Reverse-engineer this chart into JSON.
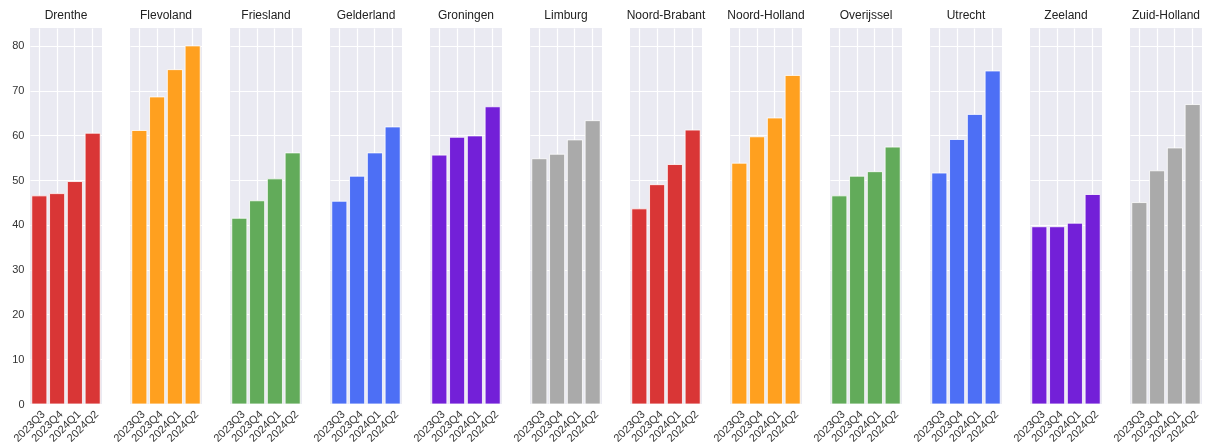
{
  "chart_data": [
    {
      "type": "bar",
      "title": "Drenthe",
      "categories": [
        "2023Q3",
        "2023Q4",
        "2024Q1",
        "2024Q2"
      ],
      "values": [
        46.5,
        47.0,
        49.7,
        60.5
      ],
      "color": "#d93636",
      "ylim": [
        0,
        84
      ],
      "yticks": [
        0,
        10,
        20,
        30,
        40,
        50,
        60,
        70,
        80
      ],
      "grid": true
    },
    {
      "type": "bar",
      "title": "Flevoland",
      "categories": [
        "2023Q3",
        "2023Q4",
        "2024Q1",
        "2024Q2"
      ],
      "values": [
        61.1,
        68.6,
        74.7,
        80.0
      ],
      "color": "#ffa01f",
      "ylim": [
        0,
        84
      ],
      "yticks": [
        0,
        10,
        20,
        30,
        40,
        50,
        60,
        70,
        80
      ],
      "grid": true,
      "tick_labels": "x"
    },
    {
      "type": "bar",
      "title": "Friesland",
      "categories": [
        "2023Q3",
        "2023Q4",
        "2024Q1",
        "2024Q2"
      ],
      "values": [
        41.5,
        45.4,
        50.3,
        56.1
      ],
      "color": "#62ab5a",
      "ylim": [
        0,
        84
      ],
      "yticks": [
        0,
        10,
        20,
        30,
        40,
        50,
        60,
        70,
        80
      ],
      "grid": true,
      "tick_labels": "x"
    },
    {
      "type": "bar",
      "title": "Gelderland",
      "categories": [
        "2023Q3",
        "2023Q4",
        "2024Q1",
        "2024Q2"
      ],
      "values": [
        45.3,
        50.9,
        56.1,
        61.9
      ],
      "color": "#4d6ff5",
      "ylim": [
        0,
        84
      ],
      "yticks": [
        0,
        10,
        20,
        30,
        40,
        50,
        60,
        70,
        80
      ],
      "grid": true,
      "tick_labels": "x"
    },
    {
      "type": "bar",
      "title": "Groningen",
      "categories": [
        "2023Q3",
        "2023Q4",
        "2024Q1",
        "2024Q2"
      ],
      "values": [
        55.6,
        59.6,
        59.9,
        66.4
      ],
      "color": "#7320d8",
      "ylim": [
        0,
        84
      ],
      "yticks": [
        0,
        10,
        20,
        30,
        40,
        50,
        60,
        70,
        80
      ],
      "grid": true,
      "tick_labels": "x"
    },
    {
      "type": "bar",
      "title": "Limburg",
      "categories": [
        "2023Q3",
        "2023Q4",
        "2024Q1",
        "2024Q2"
      ],
      "values": [
        54.8,
        55.8,
        59.0,
        63.3
      ],
      "color": "#aaaaaa",
      "ylim": [
        0,
        84
      ],
      "yticks": [
        0,
        10,
        20,
        30,
        40,
        50,
        60,
        70,
        80
      ],
      "grid": true,
      "tick_labels": "x"
    },
    {
      "type": "bar",
      "title": "Noord-Brabant",
      "categories": [
        "2023Q3",
        "2023Q4",
        "2024Q1",
        "2024Q2"
      ],
      "values": [
        43.6,
        49.0,
        53.5,
        61.2
      ],
      "color": "#d93636",
      "ylim": [
        0,
        84
      ],
      "yticks": [
        0,
        10,
        20,
        30,
        40,
        50,
        60,
        70,
        80
      ],
      "grid": true,
      "tick_labels": "x"
    },
    {
      "type": "bar",
      "title": "Noord-Holland",
      "categories": [
        "2023Q3",
        "2023Q4",
        "2024Q1",
        "2024Q2"
      ],
      "values": [
        53.8,
        59.7,
        63.9,
        73.4
      ],
      "color": "#ffa01f",
      "ylim": [
        0,
        84
      ],
      "yticks": [
        0,
        10,
        20,
        30,
        40,
        50,
        60,
        70,
        80
      ],
      "grid": true,
      "tick_labels": "x"
    },
    {
      "type": "bar",
      "title": "Overijssel",
      "categories": [
        "2023Q3",
        "2023Q4",
        "2024Q1",
        "2024Q2"
      ],
      "values": [
        46.5,
        50.9,
        51.9,
        57.4
      ],
      "color": "#62ab5a",
      "ylim": [
        0,
        84
      ],
      "yticks": [
        0,
        10,
        20,
        30,
        40,
        50,
        60,
        70,
        80
      ],
      "grid": true,
      "tick_labels": "x"
    },
    {
      "type": "bar",
      "title": "Utrecht",
      "categories": [
        "2023Q3",
        "2023Q4",
        "2024Q1",
        "2024Q2"
      ],
      "values": [
        51.6,
        59.1,
        64.7,
        74.4
      ],
      "color": "#4d6ff5",
      "ylim": [
        0,
        84
      ],
      "yticks": [
        0,
        10,
        20,
        30,
        40,
        50,
        60,
        70,
        80
      ],
      "grid": true,
      "tick_labels": "x"
    },
    {
      "type": "bar",
      "title": "Zeeland",
      "categories": [
        "2023Q3",
        "2023Q4",
        "2024Q1",
        "2024Q2"
      ],
      "values": [
        39.6,
        39.6,
        40.4,
        46.8
      ],
      "color": "#7320d8",
      "ylim": [
        0,
        84
      ],
      "yticks": [
        0,
        10,
        20,
        30,
        40,
        50,
        60,
        70,
        80
      ],
      "grid": true,
      "tick_labels": "x"
    },
    {
      "type": "bar",
      "title": "Zuid-Holland",
      "categories": [
        "2023Q3",
        "2023Q4",
        "2024Q1",
        "2024Q2"
      ],
      "values": [
        45.0,
        52.1,
        57.2,
        66.9
      ],
      "color": "#aaaaaa",
      "ylim": [
        0,
        84
      ],
      "yticks": [
        0,
        10,
        20,
        30,
        40,
        50,
        60,
        70,
        80
      ],
      "grid": true,
      "tick_labels": "x"
    }
  ]
}
